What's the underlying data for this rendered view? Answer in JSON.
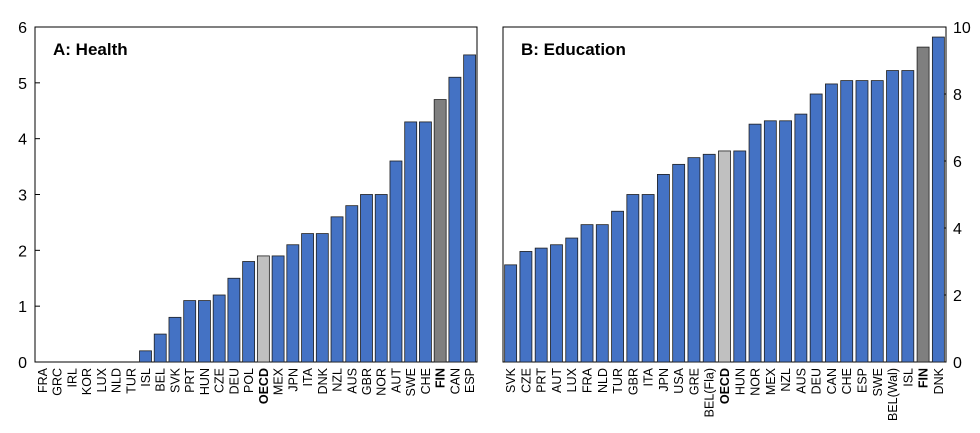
{
  "chart_data": [
    {
      "type": "bar",
      "title": "A: Health",
      "categories": [
        "FRA",
        "GRC",
        "IRL",
        "KOR",
        "LUX",
        "NLD",
        "TUR",
        "ISL",
        "BEL",
        "SVK",
        "PRT",
        "HUN",
        "CZE",
        "DEU",
        "POL",
        "OECD",
        "MEX",
        "JPN",
        "ITA",
        "DNK",
        "NZL",
        "AUS",
        "GBR",
        "NOR",
        "AUT",
        "SWE",
        "CHE",
        "FIN",
        "CAN",
        "ESP"
      ],
      "values": [
        0,
        0,
        0,
        0,
        0,
        0,
        0,
        0.2,
        0.5,
        0.8,
        1.1,
        1.1,
        1.2,
        1.5,
        1.8,
        1.9,
        1.9,
        2.1,
        2.3,
        2.3,
        2.6,
        2.8,
        3.0,
        3.0,
        3.6,
        4.3,
        4.3,
        4.7,
        5.1,
        5.5
      ],
      "highlight": {
        "OECD": "#c0c0c0",
        "FIN": "#7f7f7f"
      },
      "bold_labels": [
        "OECD",
        "FIN"
      ],
      "ylim": [
        0,
        6
      ],
      "yticks": [
        0,
        1,
        2,
        3,
        4,
        5,
        6
      ],
      "y_axis_side": "left",
      "bar_color": "#4472c4",
      "grid": false
    },
    {
      "type": "bar",
      "title": "B: Education",
      "categories": [
        "SVK",
        "CZE",
        "PRT",
        "AUT",
        "LUX",
        "FRA",
        "NLD",
        "TUR",
        "GBR",
        "ITA",
        "JPN",
        "USA",
        "GRE",
        "BEL(Fla)",
        "OECD",
        "HUN",
        "NOR",
        "MEX",
        "NZL",
        "AUS",
        "DEU",
        "CAN",
        "CHE",
        "ESP",
        "SWE",
        "BEL(Wal)",
        "ISL",
        "FIN",
        "DNK"
      ],
      "values": [
        2.9,
        3.3,
        3.4,
        3.5,
        3.7,
        4.1,
        4.1,
        4.5,
        5.0,
        5.0,
        5.6,
        5.9,
        6.1,
        6.2,
        6.3,
        6.3,
        7.1,
        7.2,
        7.2,
        7.4,
        8.0,
        8.3,
        8.4,
        8.4,
        8.4,
        8.7,
        8.7,
        9.4,
        9.7
      ],
      "highlight": {
        "OECD": "#c0c0c0",
        "FIN": "#7f7f7f"
      },
      "bold_labels": [
        "OECD",
        "FIN"
      ],
      "ylim": [
        0,
        10
      ],
      "yticks": [
        0,
        2,
        4,
        6,
        8,
        10
      ],
      "y_axis_side": "right",
      "bar_color": "#4472c4",
      "grid": false
    }
  ]
}
